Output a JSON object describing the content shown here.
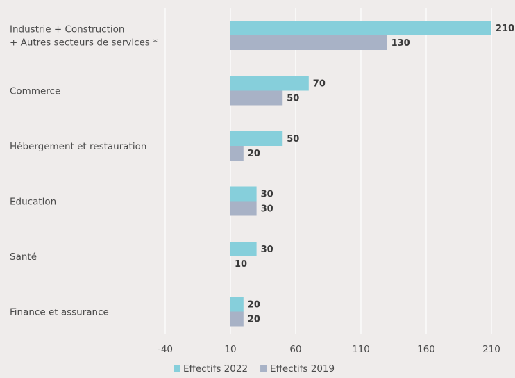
{
  "chart_data": {
    "type": "bar",
    "orientation": "horizontal",
    "categories": [
      [
        "Industrie + Construction",
        "+ Autres secteurs de services *"
      ],
      [
        "Commerce"
      ],
      [
        "Hébergement et restauration"
      ],
      [
        "Education"
      ],
      [
        "Santé"
      ],
      [
        "Finance et assurance"
      ]
    ],
    "series": [
      {
        "name": "Effectifs 2022",
        "color": "#86cfdb",
        "values": [
          210,
          70,
          50,
          30,
          30,
          20
        ]
      },
      {
        "name": "Effectifs 2019",
        "color": "#a8b2c6",
        "values": [
          130,
          50,
          20,
          30,
          10,
          20
        ]
      }
    ],
    "xticks": [
      -40,
      10,
      60,
      110,
      160,
      210
    ],
    "xlim": [
      -40,
      210
    ],
    "grid": true,
    "legend_position": "bottom-center",
    "title": "",
    "xlabel": "",
    "ylabel": ""
  }
}
